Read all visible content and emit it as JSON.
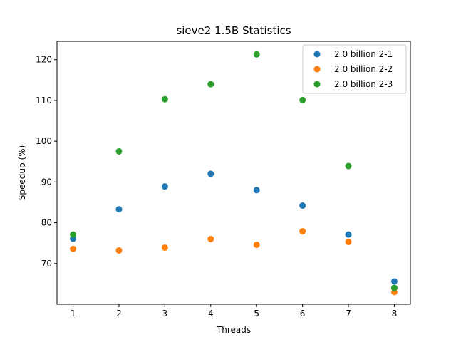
{
  "chart_data": {
    "type": "scatter",
    "title": "sieve2 1.5B Statistics",
    "xlabel": "Threads",
    "ylabel": "Speedup (%)",
    "xlim": [
      0.65,
      8.35
    ],
    "ylim": [
      60.0,
      124.5
    ],
    "xticks": [
      1,
      2,
      3,
      4,
      5,
      6,
      7,
      8
    ],
    "yticks": [
      70,
      80,
      90,
      100,
      110,
      120
    ],
    "grid": false,
    "legend_position": "top-right",
    "series": [
      {
        "name": "2.0 billion 2-1",
        "color": "#1f77b4",
        "x": [
          1,
          2,
          3,
          4,
          5,
          6,
          7,
          8
        ],
        "y": [
          76.1,
          83.3,
          88.9,
          92.0,
          88.0,
          84.2,
          77.1,
          65.6
        ]
      },
      {
        "name": "2.0 billion 2-2",
        "color": "#ff7f0e",
        "x": [
          1,
          2,
          3,
          4,
          5,
          6,
          7,
          8
        ],
        "y": [
          73.6,
          73.2,
          73.9,
          76.0,
          74.6,
          77.9,
          75.3,
          63.0
        ]
      },
      {
        "name": "2.0 billion 2-3",
        "color": "#2ca02c",
        "x": [
          1,
          2,
          3,
          4,
          5,
          6,
          7,
          8
        ],
        "y": [
          77.1,
          97.5,
          110.3,
          114.0,
          121.3,
          110.1,
          93.9,
          64.0
        ]
      }
    ]
  }
}
